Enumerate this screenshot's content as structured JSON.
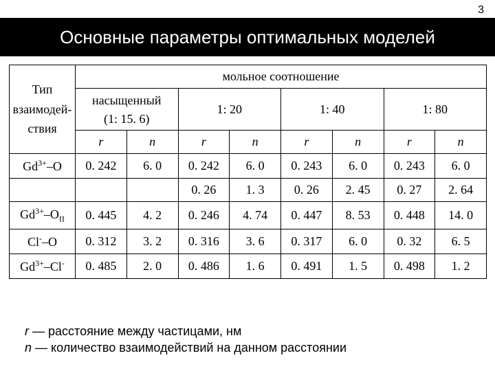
{
  "page_number": "3",
  "title": "Основные параметры оптимальных моделей",
  "table": {
    "top_header": "мольное соотношение",
    "type_label_l1": "Тип",
    "type_label_l2": "взаимодей-",
    "type_label_l3": "ствия",
    "col_groups": {
      "saturated": "насыщенный",
      "saturated_sub": "(1: 15. 6)",
      "r120": "1: 20",
      "r140": "1: 40",
      "r180": "1: 80"
    },
    "rn": {
      "r": "r",
      "n": "n"
    },
    "rows": [
      {
        "label_html": "Gd<span class=\"sup\">3+</span>–O",
        "cells": [
          "0. 242",
          "6. 0",
          "0. 242",
          "6. 0",
          "0. 243",
          "6. 0",
          "0. 243",
          "6. 0"
        ]
      },
      {
        "label_html": "",
        "cells": [
          "",
          "",
          "0. 26",
          "1. 3",
          "0. 26",
          "2. 45",
          "0. 27",
          "2. 64"
        ]
      },
      {
        "label_html": "Gd<span class=\"sup\">3+</span>–O<span class=\"sub\">II</span>",
        "cells": [
          "0. 445",
          "4. 2",
          "0. 246",
          "4. 74",
          "0. 447",
          "8. 53",
          "0. 448",
          "14. 0"
        ]
      },
      {
        "label_html": "Cl<span class=\"sup\">-</span>–O",
        "cells": [
          "0. 312",
          "3. 2",
          "0. 316",
          "3. 6",
          "0. 317",
          "6. 0",
          "0. 32",
          "6. 5"
        ]
      },
      {
        "label_html": "Gd<span class=\"sup\">3+</span>–Cl<span class=\"sup\">-</span>",
        "cells": [
          "0. 485",
          "2. 0",
          "0. 486",
          "1. 6",
          "0. 491",
          "1. 5",
          "0. 498",
          "1. 2"
        ]
      }
    ]
  },
  "footer": {
    "line1_pre": "r",
    "line1_rest": " — расстояние между частицами, нм",
    "line2_pre": "n",
    "line2_rest": " — количество взаимодействий на данном расстоянии"
  }
}
